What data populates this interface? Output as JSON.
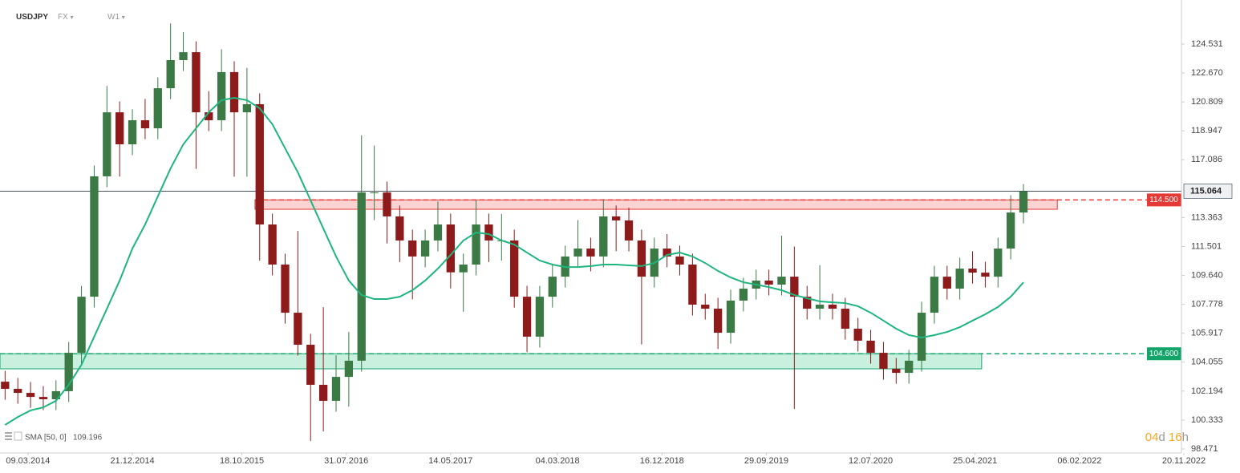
{
  "header": {
    "symbol": "USDJPY",
    "market": "FX",
    "interval": "W1",
    "countdown": [
      "04",
      "d",
      "16",
      "h"
    ]
  },
  "chart_data": {
    "type": "candlestick",
    "x": [
      "05.01.2014",
      "09.02.2014",
      "16.03.2014",
      "20.04.2014",
      "25.05.2014",
      "29.06.2014",
      "03.08.2014",
      "07.09.2014",
      "12.10.2014",
      "16.11.2014",
      "21.12.2014",
      "25.01.2015",
      "01.03.2015",
      "05.04.2015",
      "10.05.2015",
      "14.06.2015",
      "19.07.2015",
      "23.08.2015",
      "27.09.2015",
      "01.11.2015",
      "06.12.2015",
      "10.01.2016",
      "14.02.2016",
      "20.03.2016",
      "24.04.2016",
      "29.05.2016",
      "03.07.2016",
      "07.08.2016",
      "11.09.2016",
      "16.10.2016",
      "20.11.2016",
      "25.12.2016",
      "29.01.2017",
      "05.03.2017",
      "09.04.2017",
      "14.05.2017",
      "18.06.2017",
      "23.07.2017",
      "27.08.2017",
      "01.10.2017",
      "05.11.2017",
      "10.12.2017",
      "14.01.2018",
      "18.02.2018",
      "25.03.2018",
      "29.04.2018",
      "03.06.2018",
      "08.07.2018",
      "12.08.2018",
      "16.09.2018",
      "21.10.2018",
      "25.11.2018",
      "30.12.2018",
      "03.02.2019",
      "10.03.2019",
      "14.04.2019",
      "19.05.2019",
      "23.06.2019",
      "28.07.2019",
      "01.09.2019",
      "06.10.2019",
      "10.11.2019",
      "15.12.2019",
      "19.01.2020",
      "23.02.2020",
      "29.03.2020",
      "03.05.2020",
      "07.06.2020",
      "12.07.2020",
      "16.08.2020",
      "20.09.2020",
      "25.10.2020",
      "29.11.2020",
      "03.01.2021",
      "07.02.2021",
      "14.03.2021",
      "18.04.2021",
      "23.05.2021",
      "27.06.2021",
      "01.08.2021",
      "05.09.2021"
    ],
    "open": [
      102.8,
      102.34,
      102.08,
      101.82,
      101.67,
      102.19,
      104.66,
      108.27,
      116.02,
      120.14,
      118.08,
      119.63,
      119.11,
      121.69,
      123.5,
      124.01,
      120.14,
      119.63,
      122.73,
      120.14,
      120.66,
      112.92,
      110.34,
      107.24,
      105.18,
      102.6,
      101.57,
      103.11,
      104.15,
      114.98,
      114.98,
      113.44,
      111.89,
      110.86,
      111.89,
      112.92,
      109.84,
      110.34,
      112.92,
      111.89,
      111.89,
      108.27,
      105.7,
      108.27,
      109.56,
      110.86,
      111.37,
      110.86,
      113.44,
      113.18,
      111.89,
      109.56,
      111.37,
      110.86,
      110.34,
      107.76,
      107.5,
      105.95,
      108.02,
      108.79,
      109.31,
      109.05,
      109.56,
      108.27,
      107.5,
      107.76,
      107.5,
      106.21,
      105.44,
      104.66,
      103.63,
      103.37,
      104.15,
      107.24,
      109.56,
      108.79,
      110.08,
      109.82,
      109.56,
      111.37,
      113.69
    ],
    "high": [
      103.5,
      103.04,
      102.78,
      102.52,
      102.89,
      105.36,
      108.97,
      116.72,
      121.84,
      120.84,
      120.33,
      121.0,
      122.39,
      125.86,
      125.3,
      124.71,
      121.5,
      124.2,
      123.43,
      123.0,
      121.36,
      113.62,
      111.04,
      112.5,
      105.88,
      107.6,
      104.5,
      106.0,
      118.66,
      118.0,
      115.68,
      114.14,
      112.59,
      112.59,
      114.4,
      113.62,
      111.04,
      114.5,
      113.62,
      113.6,
      112.59,
      108.97,
      108.97,
      110.4,
      111.56,
      113.2,
      112.07,
      114.55,
      114.14,
      114.0,
      112.59,
      112.07,
      112.3,
      111.56,
      111.04,
      108.46,
      108.2,
      108.72,
      109.49,
      110.01,
      110.01,
      112.2,
      111.5,
      108.97,
      110.3,
      108.46,
      108.2,
      106.91,
      106.14,
      105.36,
      104.33,
      104.85,
      107.94,
      110.26,
      110.26,
      110.78,
      111.2,
      110.52,
      112.07,
      114.8,
      115.52
    ],
    "low": [
      101.64,
      101.38,
      101.12,
      100.97,
      100.97,
      101.49,
      103.96,
      107.57,
      115.32,
      116.0,
      117.38,
      118.41,
      118.41,
      120.99,
      122.8,
      116.5,
      118.93,
      118.93,
      116.0,
      116.0,
      110.6,
      109.64,
      106.54,
      104.48,
      98.98,
      99.6,
      100.87,
      101.2,
      103.45,
      113.2,
      111.7,
      110.5,
      108.1,
      110.16,
      111.19,
      108.8,
      107.3,
      109.64,
      110.5,
      110.6,
      107.57,
      104.7,
      105.0,
      107.57,
      108.86,
      110.16,
      109.9,
      110.16,
      111.2,
      111.19,
      105.2,
      108.86,
      110.16,
      109.64,
      107.06,
      106.8,
      104.9,
      105.25,
      107.32,
      108.09,
      108.35,
      108.35,
      101.05,
      106.8,
      106.8,
      106.8,
      105.51,
      104.74,
      103.96,
      102.93,
      102.67,
      102.67,
      103.45,
      106.54,
      108.09,
      108.09,
      109.12,
      108.86,
      108.86,
      110.67,
      112.99
    ],
    "close": [
      102.34,
      102.08,
      101.82,
      101.67,
      102.19,
      104.66,
      108.27,
      116.02,
      120.14,
      118.08,
      119.63,
      119.11,
      121.69,
      123.5,
      124.01,
      120.14,
      119.63,
      122.73,
      120.14,
      120.66,
      112.92,
      110.34,
      107.24,
      105.18,
      102.6,
      101.57,
      103.11,
      104.15,
      114.98,
      114.98,
      113.44,
      111.89,
      110.86,
      111.89,
      112.92,
      109.84,
      110.34,
      112.92,
      111.89,
      111.89,
      108.27,
      105.7,
      108.27,
      109.56,
      110.86,
      111.37,
      110.86,
      113.44,
      113.18,
      111.89,
      109.56,
      111.37,
      110.86,
      110.34,
      107.76,
      107.5,
      105.95,
      108.02,
      108.79,
      109.31,
      109.05,
      109.56,
      108.27,
      107.5,
      107.76,
      107.5,
      106.21,
      105.44,
      104.66,
      103.63,
      103.37,
      104.15,
      107.24,
      109.56,
      108.79,
      110.08,
      109.82,
      109.56,
      111.37,
      113.69,
      115.064
    ],
    "up_color": "#3b7a45",
    "down_color": "#8e1b1b",
    "sma": {
      "name": "SMA [50, 0]",
      "color": "#1fb57f",
      "values": [
        100.02,
        100.53,
        100.95,
        101.15,
        101.57,
        102.6,
        103.89,
        105.7,
        107.5,
        109.31,
        111.37,
        112.92,
        114.73,
        116.53,
        118.08,
        119.11,
        120.14,
        120.92,
        121.07,
        120.92,
        120.4,
        119.37,
        117.82,
        116.27,
        114.47,
        112.66,
        110.86,
        109.31,
        108.38,
        108.12,
        108.12,
        108.27,
        108.69,
        109.31,
        110.08,
        110.96,
        111.89,
        112.4,
        112.3,
        111.89,
        111.63,
        111.11,
        110.6,
        110.34,
        110.18,
        110.18,
        110.24,
        110.34,
        110.34,
        110.29,
        110.24,
        110.44,
        110.96,
        111.11,
        110.86,
        110.44,
        109.93,
        109.51,
        109.2,
        109.05,
        108.89,
        108.69,
        108.38,
        108.17,
        107.97,
        107.91,
        107.86,
        107.66,
        107.24,
        106.73,
        106.21,
        105.8,
        105.64,
        105.8,
        106.0,
        106.31,
        106.73,
        107.14,
        107.61,
        108.27,
        109.196
      ]
    },
    "zones": [
      {
        "from": "23.11.2015",
        "to": "07.12.2021",
        "low": 113.9,
        "level": {
          "value": 114.5,
          "label": "114.500"
        },
        "color": "#e53935",
        "fill": "#fbd3d3"
      },
      {
        "from": "22.12.2013",
        "to": "13.05.2021",
        "low": 103.63,
        "level": {
          "value": 104.6,
          "label": "104.600"
        },
        "color": "#13a46a",
        "fill": "#c9efdf"
      }
    ],
    "last_price": 115.064,
    "xlim": [
      "22.12.2013",
      "20.11.2022"
    ],
    "xticks": [
      "09.03.2014",
      "21.12.2014",
      "18.10.2015",
      "31.07.2016",
      "14.05.2017",
      "04.03.2018",
      "16.12.2018",
      "29.09.2019",
      "12.07.2020",
      "25.04.2021",
      "06.02.2022",
      "20.11.2022"
    ],
    "ylim": [
      98.213,
      127.369
    ],
    "yticks": [
      124.531,
      {
        "value": 122.67,
        "label": "122.670"
      },
      120.809,
      118.947,
      117.086,
      113.363,
      111.501,
      {
        "value": 109.64,
        "label": "109.640"
      },
      107.778,
      105.917,
      104.055,
      102.194,
      100.333,
      98.471
    ]
  }
}
